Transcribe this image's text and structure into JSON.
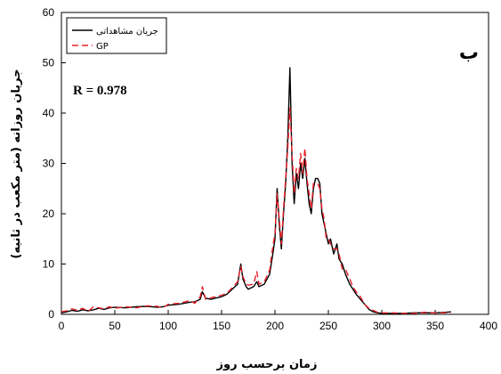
{
  "chart_data": {
    "type": "line",
    "xlabel": "زمان برحسب روز",
    "ylabel": "جریان روزانه (متر مکعب در ثانیه)",
    "xlim": [
      0,
      400
    ],
    "ylim": [
      0,
      60
    ],
    "xticks": [
      0,
      50,
      100,
      150,
      200,
      250,
      300,
      350,
      400
    ],
    "yticks": [
      0,
      10,
      20,
      30,
      40,
      50,
      60
    ],
    "grid": false,
    "legend_position": "top-left",
    "annotations": [
      "R = 0.978",
      "ب"
    ],
    "series": [
      {
        "name": "جریان مشاهداتی",
        "color": "#000000",
        "dash": "solid",
        "x": [
          0,
          5,
          10,
          15,
          20,
          25,
          30,
          35,
          40,
          45,
          50,
          60,
          70,
          80,
          90,
          95,
          100,
          110,
          120,
          125,
          130,
          132,
          135,
          140,
          150,
          155,
          160,
          165,
          168,
          170,
          173,
          175,
          180,
          183,
          185,
          190,
          195,
          198,
          200,
          202,
          204,
          206,
          208,
          210,
          212,
          214,
          216,
          218,
          220,
          222,
          224,
          226,
          228,
          230,
          232,
          234,
          236,
          238,
          240,
          242,
          244,
          246,
          248,
          250,
          252,
          255,
          258,
          260,
          263,
          266,
          270,
          273,
          276,
          280,
          284,
          288,
          292,
          296,
          300,
          310,
          320,
          330,
          340,
          350,
          360,
          365
        ],
        "y": [
          0.3,
          0.5,
          0.8,
          0.6,
          0.9,
          0.7,
          0.9,
          1.2,
          1.0,
          1.3,
          1.4,
          1.3,
          1.5,
          1.6,
          1.4,
          1.5,
          1.8,
          2.0,
          2.4,
          2.5,
          3.0,
          4.5,
          3.2,
          3.0,
          3.5,
          4.0,
          5.0,
          6.0,
          10.0,
          7.0,
          5.5,
          5.0,
          5.5,
          6.5,
          5.5,
          6.0,
          8.0,
          12.0,
          15.0,
          25.0,
          18.0,
          13.0,
          20.0,
          26.0,
          35.0,
          49.0,
          30.0,
          22.0,
          28.0,
          25.0,
          30.0,
          27.0,
          31.0,
          26.0,
          22.0,
          20.0,
          25.0,
          27.0,
          27.0,
          26.0,
          20.0,
          18.0,
          16.0,
          14.0,
          15.0,
          12.0,
          14.0,
          11.0,
          10.0,
          8.0,
          6.0,
          5.0,
          4.0,
          3.0,
          2.0,
          1.0,
          0.5,
          0.3,
          0.2,
          0.2,
          0.2,
          0.3,
          0.3,
          0.3,
          0.4,
          0.5
        ]
      },
      {
        "name": "GP",
        "color": "#e8202a",
        "dash": "dashed",
        "x": [
          0,
          5,
          10,
          15,
          20,
          25,
          30,
          35,
          40,
          45,
          50,
          60,
          70,
          80,
          90,
          95,
          100,
          110,
          120,
          125,
          130,
          132,
          135,
          140,
          150,
          155,
          160,
          165,
          168,
          170,
          173,
          175,
          180,
          183,
          185,
          190,
          195,
          198,
          200,
          202,
          204,
          206,
          208,
          210,
          212,
          214,
          216,
          218,
          220,
          222,
          224,
          226,
          228,
          230,
          232,
          234,
          236,
          238,
          240,
          242,
          244,
          246,
          248,
          250,
          252,
          255,
          258,
          260,
          263,
          266,
          270,
          273,
          276,
          280,
          284,
          288,
          292,
          296,
          300,
          310,
          320,
          330,
          340,
          350,
          360,
          365
        ],
        "y": [
          0.5,
          0.7,
          1.1,
          0.8,
          1.2,
          0.6,
          1.5,
          1.3,
          1.1,
          1.5,
          1.2,
          1.5,
          1.3,
          1.7,
          1.6,
          1.3,
          2.0,
          2.2,
          2.7,
          2.2,
          3.5,
          5.5,
          3.0,
          3.3,
          3.8,
          4.2,
          5.3,
          6.5,
          9.5,
          7.5,
          6.0,
          5.8,
          6.0,
          8.5,
          6.0,
          6.5,
          8.8,
          13.5,
          16.0,
          24.0,
          19.0,
          14.0,
          21.0,
          27.0,
          33.0,
          41.0,
          32.0,
          24.0,
          29.0,
          27.0,
          32.0,
          28.0,
          33.0,
          27.0,
          24.0,
          21.0,
          26.0,
          26.0,
          26.0,
          25.0,
          21.0,
          19.0,
          15.0,
          15.0,
          14.0,
          13.0,
          13.0,
          12.0,
          9.0,
          9.0,
          7.0,
          5.5,
          4.5,
          3.5,
          2.0,
          1.2,
          0.8,
          0.4,
          0.3,
          0.3,
          0.2,
          0.2,
          0.4,
          0.3,
          0.3,
          0.4
        ]
      }
    ]
  }
}
